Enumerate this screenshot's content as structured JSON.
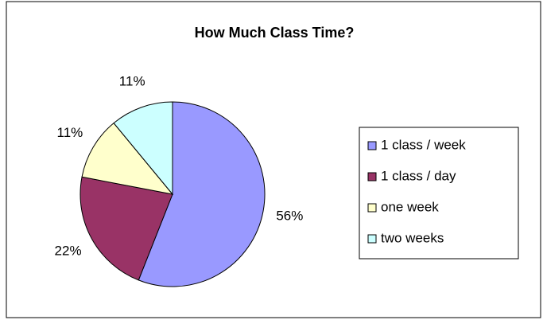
{
  "chart_data": {
    "type": "pie",
    "title": "How Much Class Time?",
    "categories": [
      "1 class / week",
      "1 class / day",
      "one week",
      "two weeks"
    ],
    "values": [
      56,
      22,
      11,
      11
    ],
    "value_labels": [
      "56%",
      "22%",
      "11%",
      "11%"
    ],
    "colors": [
      "#9999ff",
      "#993366",
      "#ffffcc",
      "#ccffff"
    ],
    "legend": "right"
  }
}
